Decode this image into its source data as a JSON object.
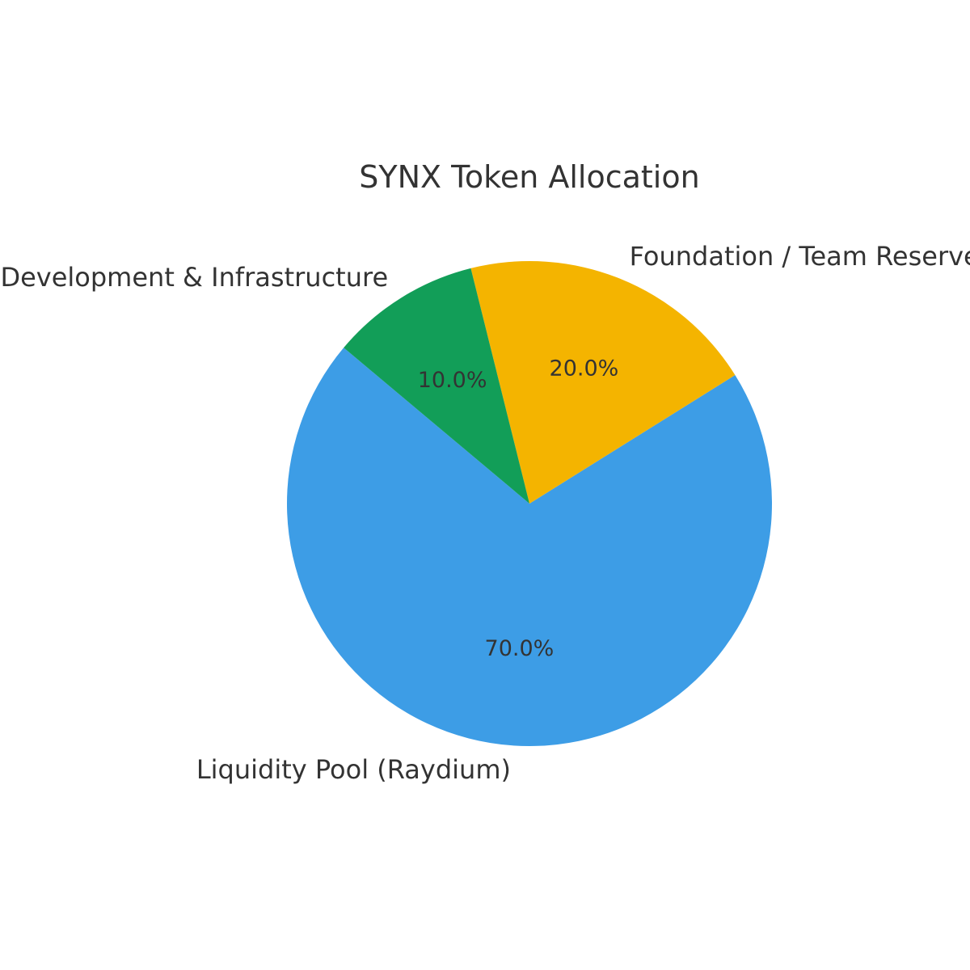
{
  "chart_data": {
    "type": "pie",
    "title": "SYNX Token Allocation",
    "slices": [
      {
        "label": "Liquidity Pool (Raydium)",
        "value": 70.0,
        "pct_label": "70.0%",
        "color": "#3d9de6"
      },
      {
        "label": "Foundation / Team Reserve",
        "value": 20.0,
        "pct_label": "20.0%",
        "color": "#f4b400"
      },
      {
        "label": "Development & Infrastructure",
        "value": 10.0,
        "pct_label": "10.0%",
        "color": "#129e58"
      }
    ],
    "start_angle_deg": 140,
    "direction": "counterclockwise"
  }
}
